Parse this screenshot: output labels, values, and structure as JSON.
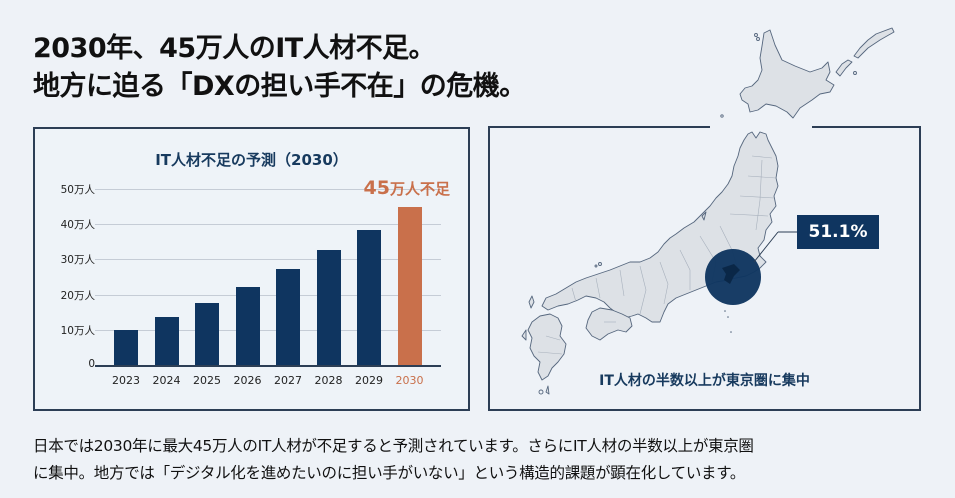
{
  "headline": {
    "line1": "2030年、45万人のIT人材不足。",
    "line2": "地方に迫る「DXの担い手不在」の危機。"
  },
  "colors": {
    "navy": "#0f3560",
    "accent": "#c9704b",
    "background": "#eef2f7",
    "border": "#2c3e55"
  },
  "chart_data": {
    "type": "bar",
    "title": "IT人材不足の予測（2030）",
    "categories": [
      "2023",
      "2024",
      "2025",
      "2026",
      "2027",
      "2028",
      "2029",
      "2030"
    ],
    "values": [
      10,
      13.6,
      17.5,
      22.2,
      27.2,
      32.7,
      38.4,
      45
    ],
    "unit": "万人",
    "xlabel": "",
    "ylabel": "",
    "ylim": [
      0,
      50
    ],
    "yticks": [
      "0",
      "10万人",
      "20万人",
      "30万人",
      "40万人",
      "50万人"
    ],
    "grid": true,
    "highlight_index": 7,
    "annotation": {
      "number": "45",
      "unit": "万人不足"
    }
  },
  "map": {
    "callout_value": "51.1%",
    "caption": "IT人材の半数以上が東京圏に集中",
    "highlight_region": "tokyo-metropolitan-area"
  },
  "body_text": {
    "line1": "日本では2030年に最大45万人のIT人材が不足すると予測されています。さらにIT人材の半数以上が東京圏",
    "line2": "に集中。地方では「デジタル化を進めたいのに担い手がいない」という構造的課題が顕在化しています。"
  }
}
